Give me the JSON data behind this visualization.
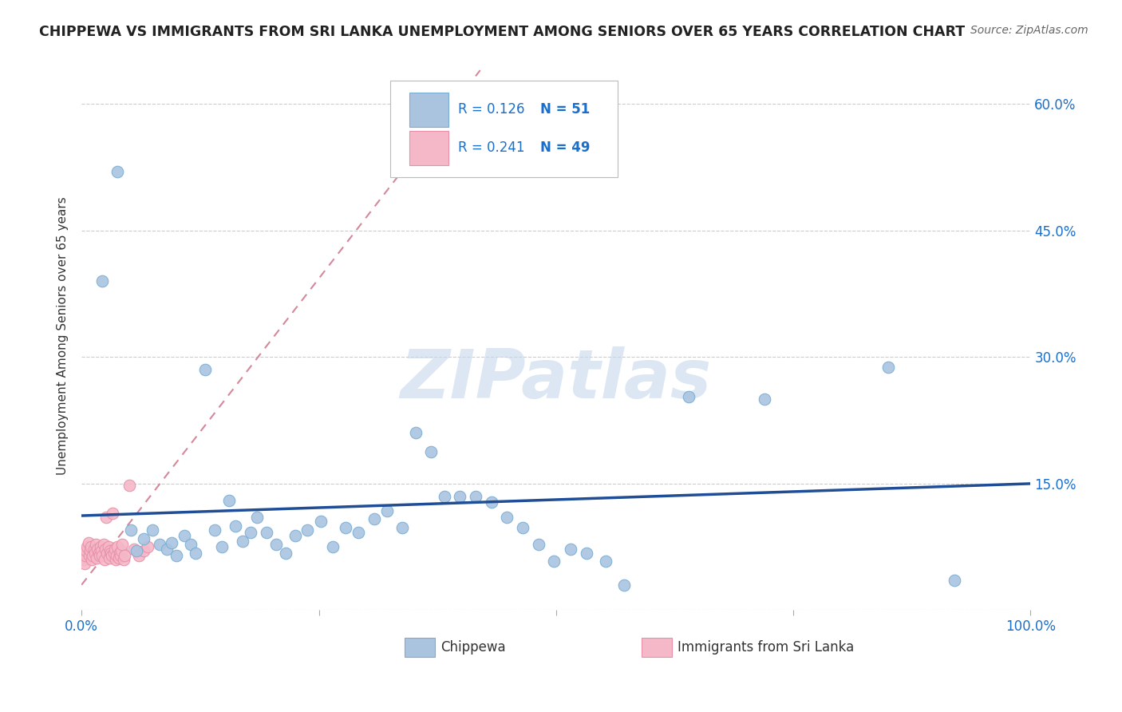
{
  "title": "CHIPPEWA VS IMMIGRANTS FROM SRI LANKA UNEMPLOYMENT AMONG SENIORS OVER 65 YEARS CORRELATION CHART",
  "source": "Source: ZipAtlas.com",
  "ylabel": "Unemployment Among Seniors over 65 years",
  "chippewa_R": "0.126",
  "chippewa_N": "51",
  "srilanka_R": "0.241",
  "srilanka_N": "49",
  "chippewa_color": "#aac4e0",
  "chippewa_edge": "#7aadd4",
  "srilanka_color": "#f5b8c8",
  "srilanka_edge": "#e890a8",
  "trendline_blue": "#1f4e96",
  "trendline_pink": "#d4889a",
  "watermark_text": "ZIPatlas",
  "watermark_color": "#c5d8ec",
  "background_color": "#ffffff",
  "legend_R_color": "#1a6fcc",
  "legend_N_color": "#1a6fcc",
  "tick_color": "#1a6fcc",
  "ylabel_color": "#333333",
  "title_color": "#222222",
  "source_color": "#666666",
  "grid_color": "#cccccc",
  "xlim": [
    0.0,
    1.0
  ],
  "ylim": [
    0.0,
    0.65
  ],
  "ytick_vals": [
    0.0,
    0.15,
    0.3,
    0.45,
    0.6
  ],
  "ytick_labels": [
    "",
    "15.0%",
    "30.0%",
    "45.0%",
    "60.0%"
  ],
  "xtick_vals": [
    0.0,
    0.25,
    0.5,
    0.75,
    1.0
  ],
  "xtick_labels": [
    "0.0%",
    "",
    "",
    "",
    "100.0%"
  ],
  "chippewa_x": [
    0.022,
    0.038,
    0.052,
    0.058,
    0.065,
    0.075,
    0.082,
    0.09,
    0.095,
    0.1,
    0.108,
    0.115,
    0.12,
    0.13,
    0.14,
    0.148,
    0.155,
    0.162,
    0.17,
    0.178,
    0.185,
    0.195,
    0.205,
    0.215,
    0.225,
    0.238,
    0.252,
    0.265,
    0.278,
    0.292,
    0.308,
    0.322,
    0.338,
    0.352,
    0.368,
    0.382,
    0.398,
    0.415,
    0.432,
    0.448,
    0.465,
    0.482,
    0.498,
    0.515,
    0.532,
    0.552,
    0.572,
    0.64,
    0.72,
    0.85,
    0.92
  ],
  "chippewa_y": [
    0.39,
    0.52,
    0.095,
    0.07,
    0.085,
    0.095,
    0.078,
    0.072,
    0.08,
    0.065,
    0.088,
    0.078,
    0.068,
    0.285,
    0.095,
    0.075,
    0.13,
    0.1,
    0.082,
    0.092,
    0.11,
    0.092,
    0.078,
    0.068,
    0.088,
    0.095,
    0.105,
    0.075,
    0.098,
    0.092,
    0.108,
    0.118,
    0.098,
    0.21,
    0.188,
    0.135,
    0.135,
    0.135,
    0.128,
    0.11,
    0.098,
    0.078,
    0.058,
    0.072,
    0.068,
    0.058,
    0.03,
    0.253,
    0.25,
    0.288,
    0.035
  ],
  "srilanka_x": [
    0.002,
    0.003,
    0.004,
    0.005,
    0.006,
    0.007,
    0.008,
    0.009,
    0.01,
    0.011,
    0.012,
    0.013,
    0.014,
    0.015,
    0.016,
    0.017,
    0.018,
    0.019,
    0.02,
    0.021,
    0.022,
    0.023,
    0.024,
    0.025,
    0.026,
    0.027,
    0.028,
    0.029,
    0.03,
    0.031,
    0.032,
    0.033,
    0.034,
    0.035,
    0.036,
    0.037,
    0.038,
    0.039,
    0.04,
    0.041,
    0.042,
    0.043,
    0.044,
    0.045,
    0.05,
    0.055,
    0.06,
    0.065,
    0.07
  ],
  "srilanka_y": [
    0.06,
    0.055,
    0.065,
    0.07,
    0.075,
    0.08,
    0.065,
    0.07,
    0.075,
    0.06,
    0.065,
    0.072,
    0.068,
    0.078,
    0.062,
    0.072,
    0.068,
    0.065,
    0.075,
    0.07,
    0.065,
    0.078,
    0.06,
    0.072,
    0.11,
    0.068,
    0.075,
    0.062,
    0.07,
    0.068,
    0.065,
    0.115,
    0.068,
    0.072,
    0.06,
    0.065,
    0.075,
    0.062,
    0.068,
    0.065,
    0.07,
    0.078,
    0.06,
    0.065,
    0.148,
    0.072,
    0.065,
    0.07,
    0.075
  ],
  "chip_trend_x0": 0.0,
  "chip_trend_y0": 0.112,
  "chip_trend_x1": 1.0,
  "chip_trend_y1": 0.15,
  "sril_trend_x0": 0.0,
  "sril_trend_y0": 0.03,
  "sril_trend_x1": 0.42,
  "sril_trend_y1": 0.64
}
